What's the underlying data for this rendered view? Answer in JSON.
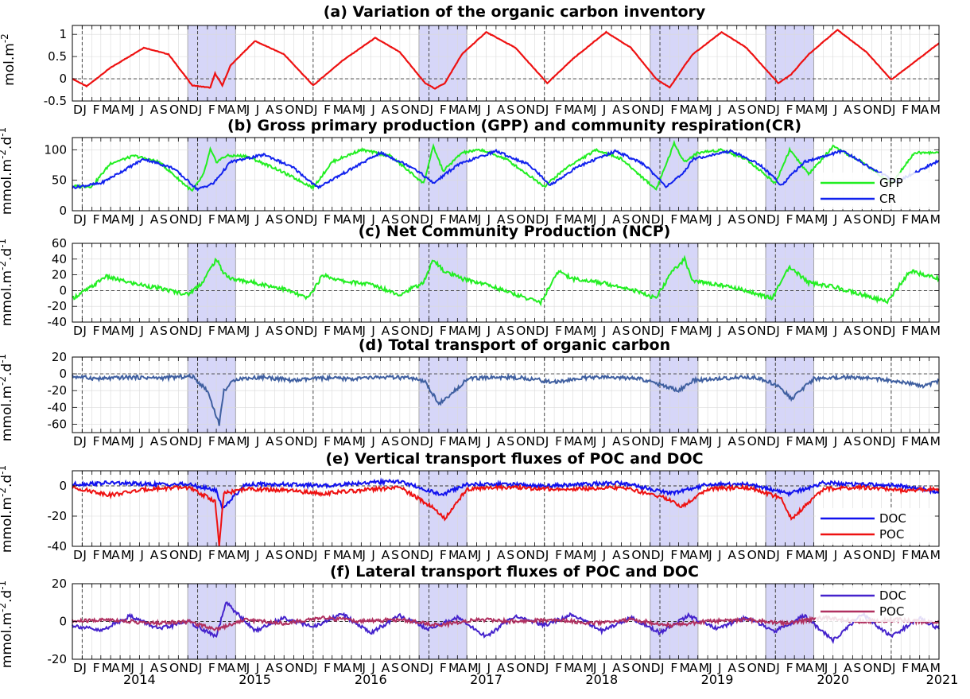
{
  "figure": {
    "month_sequence": "DJFMAMJJASONDJFMAMJJASONDJFMAMJJASONDJFMAMJJASONDJFMAMJJASONDJFMAMJJASONDJFMAMJJASONDJFMAM",
    "x_years": [
      "2014",
      "2015",
      "2016",
      "2017",
      "2018",
      "2019",
      "2020",
      "2021"
    ],
    "shaded_periods": [
      {
        "start": "2014-12-01",
        "end": "2015-05-01"
      },
      {
        "start": "2016-12-01",
        "end": "2017-05-01"
      },
      {
        "start": "2018-12-01",
        "end": "2019-05-01"
      },
      {
        "start": "2019-12-01",
        "end": "2020-05-01"
      }
    ],
    "shade_color": "#c8c8f5"
  },
  "chart_data": [
    {
      "type": "line",
      "title": "(a) Variation of the organic carbon inventory",
      "ylabel": "mol.m^-2",
      "ylim": [
        -0.5,
        1.2
      ],
      "yticks": [
        "1",
        "0.5",
        "0",
        "-0.5"
      ],
      "x_range": [
        "2013-12-01",
        "2021-06-01"
      ],
      "series": [
        {
          "color": "#ee1111",
          "x": [
            "2013-12-01",
            "2014-01-15",
            "2014-04-01",
            "2014-07-15",
            "2014-10-01",
            "2014-12-15",
            "2015-02-10",
            "2015-02-25",
            "2015-03-20",
            "2015-04-15",
            "2015-07-01",
            "2015-10-01",
            "2016-01-01",
            "2016-04-01",
            "2016-07-15",
            "2016-10-01",
            "2016-12-20",
            "2017-01-20",
            "2017-02-20",
            "2017-04-15",
            "2017-07-01",
            "2017-10-01",
            "2018-01-10",
            "2018-04-01",
            "2018-07-15",
            "2018-10-01",
            "2018-12-20",
            "2019-02-01",
            "2019-03-20",
            "2019-04-15",
            "2019-07-15",
            "2019-10-01",
            "2020-01-10",
            "2020-02-20",
            "2020-04-15",
            "2020-07-15",
            "2020-10-15",
            "2021-01-01",
            "2021-03-01",
            "2021-06-01"
          ],
          "values": [
            0.0,
            -0.17,
            0.25,
            0.7,
            0.55,
            -0.15,
            -0.2,
            0.12,
            -0.15,
            0.3,
            0.85,
            0.55,
            -0.15,
            0.4,
            0.92,
            0.6,
            -0.1,
            -0.22,
            -0.1,
            0.55,
            1.05,
            0.7,
            -0.1,
            0.45,
            1.05,
            0.7,
            0.0,
            -0.2,
            0.3,
            0.55,
            1.05,
            0.7,
            -0.1,
            0.1,
            0.55,
            1.1,
            0.6,
            -0.02,
            0.3,
            0.8
          ]
        }
      ]
    },
    {
      "type": "line",
      "title": "(b) Gross primary production (GPP) and community respiration(CR)",
      "ylabel": "mmol.m^-2.d^-1",
      "ylim": [
        0,
        120
      ],
      "yticks": [
        "100",
        "50",
        "0"
      ],
      "x_range": [
        "2013-12-01",
        "2021-06-01"
      ],
      "series": [
        {
          "name": "GPP",
          "color": "#22ee22",
          "x": [
            "2013-12-01",
            "2014-02-01",
            "2014-04-01",
            "2014-06-15",
            "2014-09-01",
            "2014-12-15",
            "2015-01-20",
            "2015-02-10",
            "2015-03-01",
            "2015-04-01",
            "2015-06-01",
            "2015-09-01",
            "2016-01-01",
            "2016-03-01",
            "2016-06-01",
            "2016-09-01",
            "2016-12-15",
            "2017-01-15",
            "2017-02-15",
            "2017-04-15",
            "2017-06-15",
            "2017-09-01",
            "2018-01-01",
            "2018-03-15",
            "2018-06-15",
            "2018-09-01",
            "2018-12-20",
            "2019-02-15",
            "2019-03-20",
            "2019-05-01",
            "2019-07-15",
            "2019-10-01",
            "2020-01-01",
            "2020-02-15",
            "2020-04-15",
            "2020-07-01",
            "2020-10-01",
            "2021-01-01",
            "2021-03-15",
            "2021-06-01"
          ],
          "values": [
            40,
            40,
            78,
            90,
            80,
            32,
            60,
            100,
            80,
            90,
            90,
            70,
            38,
            80,
            100,
            90,
            45,
            105,
            65,
            95,
            100,
            85,
            40,
            72,
            100,
            85,
            35,
            110,
            80,
            95,
            100,
            85,
            45,
            100,
            60,
            105,
            80,
            45,
            95,
            95
          ]
        },
        {
          "name": "CR",
          "color": "#1122ee",
          "x": [
            "2013-12-01",
            "2014-03-01",
            "2014-07-15",
            "2014-10-15",
            "2015-01-01",
            "2015-02-20",
            "2015-04-15",
            "2015-08-01",
            "2015-11-01",
            "2016-01-15",
            "2016-04-01",
            "2016-08-01",
            "2016-11-15",
            "2017-01-15",
            "2017-04-01",
            "2017-08-01",
            "2017-11-15",
            "2018-01-20",
            "2018-04-15",
            "2018-08-15",
            "2018-11-15",
            "2019-01-20",
            "2019-03-15",
            "2019-04-15",
            "2019-08-15",
            "2019-11-15",
            "2020-01-20",
            "2020-04-01",
            "2020-08-01",
            "2020-11-15",
            "2021-01-20",
            "2021-06-01"
          ],
          "values": [
            38,
            45,
            85,
            70,
            35,
            45,
            80,
            92,
            70,
            38,
            60,
            95,
            70,
            45,
            75,
            98,
            75,
            42,
            72,
            98,
            75,
            40,
            60,
            85,
            98,
            75,
            42,
            80,
            98,
            65,
            48,
            82
          ]
        }
      ],
      "legend_placement": "inside lower right"
    },
    {
      "type": "line",
      "title": "(c) Net Community Production (NCP)",
      "ylabel": "mmol.m^-2.d^-1",
      "ylim": [
        -40,
        60
      ],
      "yticks": [
        "60",
        "40",
        "20",
        "0",
        "-20",
        "-40"
      ],
      "x_range": [
        "2013-12-01",
        "2021-06-01"
      ],
      "series": [
        {
          "color": "#22ee22",
          "x": [
            "2013-12-01",
            "2014-02-01",
            "2014-03-15",
            "2014-06-01",
            "2014-09-01",
            "2014-12-01",
            "2015-01-15",
            "2015-03-01",
            "2015-03-20",
            "2015-04-15",
            "2015-07-01",
            "2015-10-01",
            "2015-12-15",
            "2016-02-01",
            "2016-04-01",
            "2016-07-01",
            "2016-10-01",
            "2016-12-15",
            "2017-01-15",
            "2017-02-15",
            "2017-04-15",
            "2017-07-01",
            "2017-10-01",
            "2017-12-20",
            "2018-02-15",
            "2018-04-01",
            "2018-07-01",
            "2018-10-01",
            "2018-12-20",
            "2019-02-10",
            "2019-03-20",
            "2019-04-15",
            "2019-07-01",
            "2019-10-01",
            "2019-12-20",
            "2020-02-15",
            "2020-04-15",
            "2020-07-01",
            "2020-10-01",
            "2020-12-20",
            "2021-03-01",
            "2021-06-01"
          ],
          "values": [
            -10,
            5,
            18,
            10,
            3,
            -5,
            10,
            40,
            25,
            15,
            10,
            2,
            -10,
            20,
            12,
            8,
            -5,
            10,
            40,
            25,
            15,
            8,
            -5,
            -15,
            25,
            15,
            10,
            2,
            -10,
            25,
            40,
            12,
            8,
            0,
            -10,
            30,
            10,
            5,
            -5,
            -15,
            25,
            15
          ]
        }
      ]
    },
    {
      "type": "line",
      "title": "(d) Total transport of organic carbon",
      "ylabel": "mmol.m^-2.d^-1",
      "ylim": [
        -70,
        20
      ],
      "yticks": [
        "20",
        "0",
        "-20",
        "-40",
        "-60"
      ],
      "x_range": [
        "2013-12-01",
        "2021-06-01"
      ],
      "series": [
        {
          "color": "#3f5fa0",
          "x": [
            "2013-12-01",
            "2014-03-01",
            "2014-06-01",
            "2014-09-01",
            "2014-12-15",
            "2015-02-01",
            "2015-03-10",
            "2015-03-25",
            "2015-05-01",
            "2015-08-01",
            "2015-11-01",
            "2016-02-01",
            "2016-05-01",
            "2016-08-01",
            "2016-11-01",
            "2016-12-20",
            "2017-02-01",
            "2017-02-25",
            "2017-05-01",
            "2017-08-01",
            "2017-11-01",
            "2018-02-01",
            "2018-05-01",
            "2018-08-01",
            "2018-11-01",
            "2019-01-20",
            "2019-03-01",
            "2019-04-15",
            "2019-08-01",
            "2019-11-01",
            "2020-01-15",
            "2020-02-20",
            "2020-05-01",
            "2020-08-01",
            "2020-11-01",
            "2021-02-01",
            "2021-04-15",
            "2021-06-01"
          ],
          "values": [
            -3,
            -6,
            -4,
            -5,
            -3,
            -20,
            -60,
            -20,
            -6,
            -4,
            -8,
            -5,
            -6,
            -4,
            -5,
            -10,
            -35,
            -30,
            -6,
            -4,
            -5,
            -10,
            -5,
            -4,
            -6,
            -15,
            -20,
            -8,
            -5,
            -4,
            -15,
            -30,
            -6,
            -4,
            -5,
            -10,
            -15,
            -8
          ]
        }
      ]
    },
    {
      "type": "line",
      "title": "(e) Vertical transport fluxes of POC and DOC",
      "ylabel": "mmol.m^-2.d^-1",
      "ylim": [
        -40,
        10
      ],
      "yticks": [
        "0",
        "-20",
        "-40"
      ],
      "x_range": [
        "2013-12-01",
        "2021-06-01"
      ],
      "series": [
        {
          "name": "DOC",
          "color": "#1111ee",
          "x": [
            "2013-12-01",
            "2014-04-01",
            "2014-08-01",
            "2014-12-01",
            "2015-03-01",
            "2015-03-20",
            "2015-06-01",
            "2015-10-01",
            "2016-02-01",
            "2016-06-01",
            "2016-10-01",
            "2017-02-10",
            "2017-05-01",
            "2017-09-01",
            "2018-01-01",
            "2018-05-01",
            "2018-09-01",
            "2019-02-10",
            "2019-06-01",
            "2019-10-01",
            "2020-02-15",
            "2020-06-01",
            "2020-10-01",
            "2021-02-01",
            "2021-06-01"
          ],
          "values": [
            1,
            2,
            1,
            1,
            -3,
            -15,
            1,
            1,
            0,
            2,
            3,
            -6,
            1,
            1,
            0,
            1,
            2,
            -5,
            1,
            1,
            -5,
            2,
            1,
            0,
            -4
          ]
        },
        {
          "name": "POC",
          "color": "#ee1111",
          "x": [
            "2013-12-01",
            "2014-04-01",
            "2014-08-01",
            "2014-12-01",
            "2015-02-25",
            "2015-03-10",
            "2015-03-25",
            "2015-06-01",
            "2015-10-01",
            "2016-02-01",
            "2016-06-01",
            "2016-10-01",
            "2017-01-20",
            "2017-02-20",
            "2017-05-01",
            "2017-09-01",
            "2018-01-01",
            "2018-05-01",
            "2018-09-01",
            "2019-01-20",
            "2019-03-10",
            "2019-06-01",
            "2019-10-01",
            "2020-01-20",
            "2020-02-20",
            "2020-06-01",
            "2020-10-01",
            "2021-02-01",
            "2021-06-01"
          ],
          "values": [
            -1,
            -6,
            -2,
            -1,
            -10,
            -40,
            -5,
            -2,
            -3,
            -5,
            -3,
            -1,
            -15,
            -22,
            -2,
            -1,
            -2,
            -2,
            -1,
            -8,
            -14,
            -2,
            -1,
            -8,
            -22,
            -2,
            -1,
            -3,
            -2
          ]
        }
      ],
      "legend_placement": "inside lower right"
    },
    {
      "type": "line",
      "title": "(f) Lateral transport fluxes of POC and DOC",
      "ylabel": "mmol.m^-2.d^-1",
      "ylim": [
        -20,
        20
      ],
      "yticks": [
        "20",
        "0",
        "-20"
      ],
      "x_range": [
        "2013-12-01",
        "2021-06-01"
      ],
      "series": [
        {
          "name": "DOC",
          "color": "#4422cc",
          "x": [
            "2013-12-01",
            "2014-03-01",
            "2014-06-01",
            "2014-09-01",
            "2014-12-01",
            "2015-03-01",
            "2015-04-01",
            "2015-07-01",
            "2015-10-01",
            "2016-01-01",
            "2016-04-01",
            "2016-07-01",
            "2016-10-01",
            "2017-01-01",
            "2017-04-01",
            "2017-07-01",
            "2017-10-01",
            "2018-01-01",
            "2018-04-01",
            "2018-07-01",
            "2018-10-01",
            "2019-01-01",
            "2019-04-01",
            "2019-07-01",
            "2019-10-01",
            "2020-01-01",
            "2020-04-01",
            "2020-07-01",
            "2020-10-01",
            "2021-01-01",
            "2021-04-01",
            "2021-06-01"
          ],
          "values": [
            -2,
            -5,
            3,
            -4,
            0,
            -8,
            10,
            -5,
            2,
            -3,
            4,
            -6,
            3,
            -4,
            2,
            -8,
            3,
            -2,
            4,
            -5,
            2,
            -6,
            3,
            -4,
            2,
            -5,
            3,
            -10,
            4,
            -8,
            2,
            -4
          ]
        },
        {
          "name": "POC",
          "color": "#b03060",
          "x": [
            "2013-12-01",
            "2014-04-01",
            "2014-08-01",
            "2014-12-01",
            "2015-03-01",
            "2015-06-01",
            "2015-10-01",
            "2016-02-01",
            "2016-06-01",
            "2016-10-01",
            "2017-02-01",
            "2017-06-01",
            "2017-10-01",
            "2018-02-01",
            "2018-06-01",
            "2018-10-01",
            "2019-02-01",
            "2019-06-01",
            "2019-10-01",
            "2020-02-01",
            "2020-06-01",
            "2020-10-01",
            "2021-02-01",
            "2021-06-01"
          ],
          "values": [
            0,
            1,
            -1,
            0,
            -4,
            1,
            -1,
            2,
            0,
            1,
            -2,
            1,
            0,
            1,
            -1,
            1,
            -2,
            0,
            1,
            -1,
            2,
            0,
            1,
            -1
          ]
        }
      ],
      "legend_placement": "inside upper right"
    }
  ]
}
